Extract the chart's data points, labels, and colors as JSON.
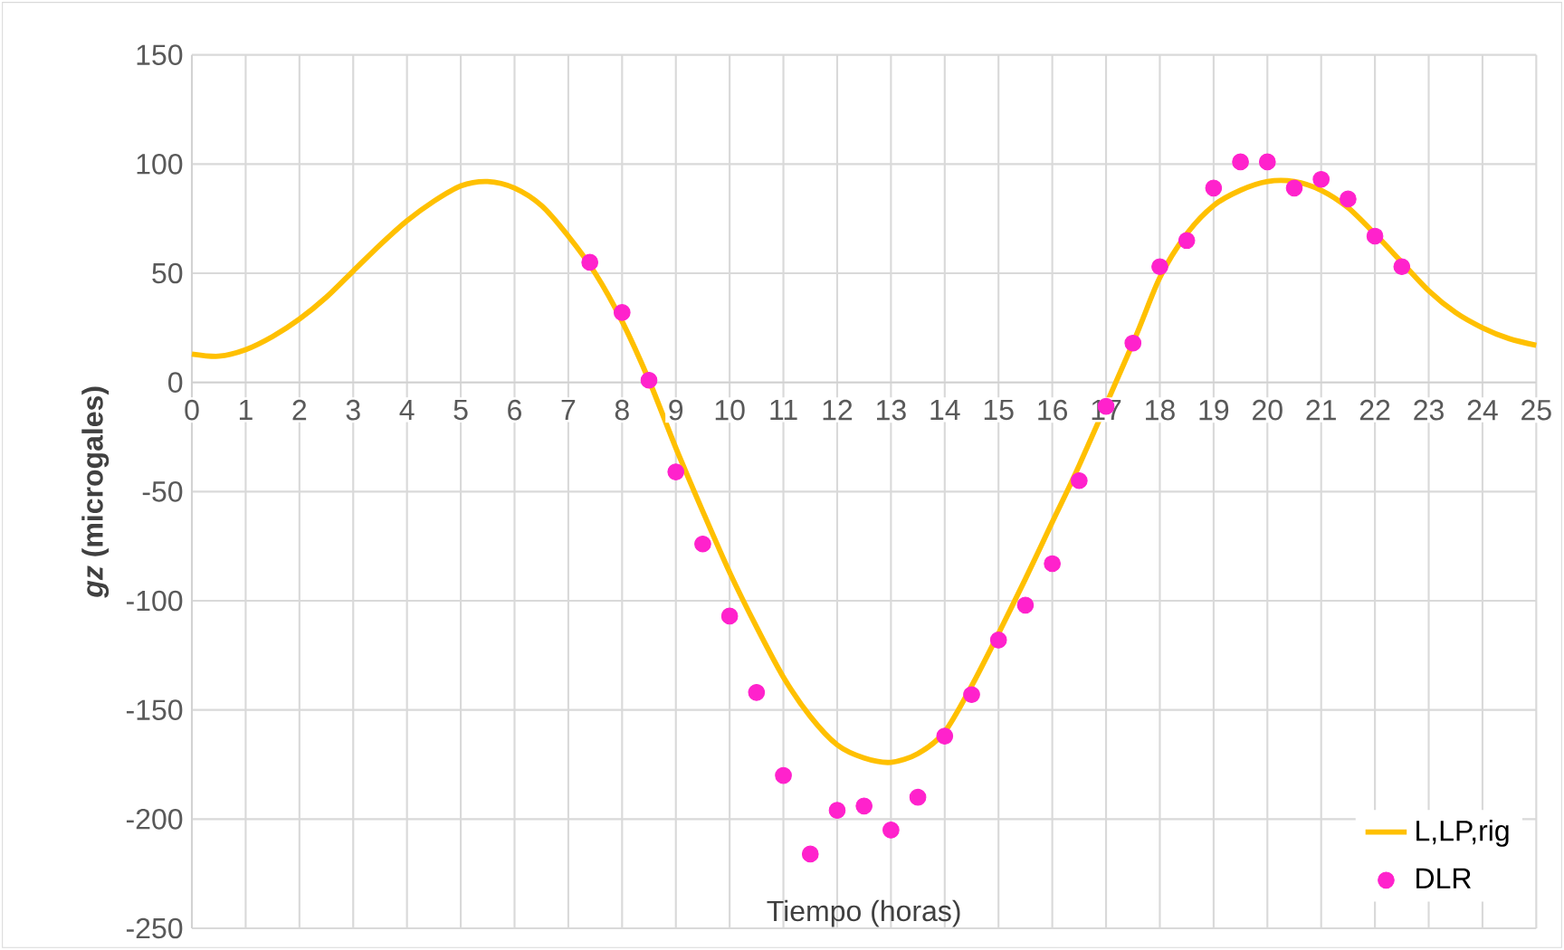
{
  "chart_data": {
    "type": "scatter",
    "xlabel": "Tiempo (horas)",
    "ylabel": "*gz* (microgales)",
    "xlim": [
      0,
      25
    ],
    "ylim": [
      -250,
      150
    ],
    "xticks": [
      0,
      1,
      2,
      3,
      4,
      5,
      6,
      7,
      8,
      9,
      10,
      11,
      12,
      13,
      14,
      15,
      16,
      17,
      18,
      19,
      20,
      21,
      22,
      23,
      24,
      25
    ],
    "yticks": [
      -250,
      -200,
      -150,
      -100,
      -50,
      0,
      50,
      100,
      150
    ],
    "grid": true,
    "legend": "bottom right",
    "series": [
      {
        "name": "L,LP,rig",
        "type": "line",
        "color": "#ffc000",
        "marker": "none",
        "line_style": "solid",
        "x": [
          0,
          0.5,
          1,
          1.5,
          2,
          2.5,
          3,
          3.5,
          4,
          4.5,
          5,
          5.5,
          6,
          6.5,
          7,
          7.5,
          8,
          8.5,
          9,
          9.5,
          10,
          10.5,
          11,
          11.5,
          12,
          12.5,
          13,
          13.5,
          14,
          14.5,
          15,
          15.5,
          16,
          16.5,
          17.5,
          18,
          18.5,
          19,
          19.5,
          20,
          20.5,
          21,
          21.5,
          22,
          22.5,
          23,
          23.5,
          24,
          24.5,
          25
        ],
        "values": [
          13,
          12,
          15,
          21,
          29,
          39,
          51,
          63,
          74,
          83,
          90,
          92,
          89,
          81,
          67,
          50,
          28,
          1,
          -30,
          -59,
          -87,
          -112,
          -135,
          -153,
          -166,
          -172,
          -174,
          -170,
          -160,
          -139,
          -115,
          -90,
          -64,
          -38,
          18,
          48,
          68,
          81,
          88,
          92,
          92,
          88,
          80,
          68,
          55,
          42,
          32,
          25,
          20,
          17
        ]
      },
      {
        "name": "DLR",
        "type": "scatter",
        "color": "#ff22cc",
        "marker": "circle",
        "x": [
          7.4,
          8,
          8.5,
          9,
          9.5,
          10,
          10.5,
          11,
          11.5,
          12,
          12.5,
          13,
          13.5,
          14,
          14.5,
          15,
          15.5,
          16,
          16.5,
          17,
          17.5,
          18,
          18.5,
          19,
          19.5,
          20,
          20.5,
          21,
          21.5,
          22,
          22.5
        ],
        "values": [
          55,
          32,
          1,
          -41,
          -74,
          -107,
          -142,
          -180,
          -216,
          -196,
          -194,
          -205,
          -190,
          -162,
          -143,
          -118,
          -102,
          -83,
          -45,
          -11,
          18,
          53,
          65,
          89,
          101,
          101,
          89,
          93,
          84,
          67,
          53
        ]
      }
    ]
  }
}
